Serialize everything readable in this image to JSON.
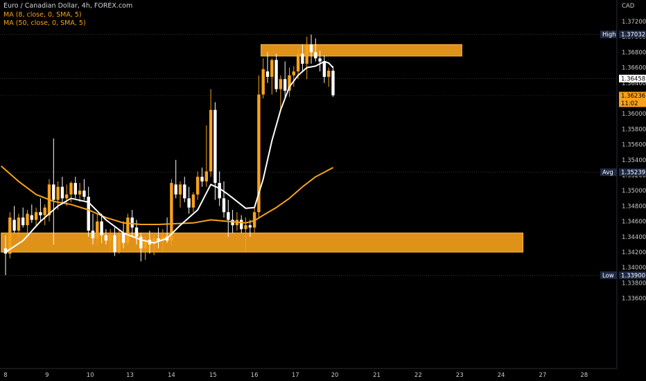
{
  "legend": {
    "title": "Euro / Canadian Dollar, 4h, FOREX.com",
    "ma_fast": "MA (8, close, 0, SMA, 5)",
    "ma_slow": "MA (50, close, 0, SMA, 5)"
  },
  "colors": {
    "background": "#000000",
    "bull": "#f7a21b",
    "bear": "#ffffff",
    "zone": "#f7a21b",
    "ma_fast": "#ffffff",
    "ma_slow": "#f7a21b",
    "axis_text": "#c8c8c8",
    "tag_dark": "#1e2a44"
  },
  "chart_data": {
    "type": "candlestick",
    "currency_label": "CAD",
    "price_ticks": [
      "1.37200",
      "1.37000",
      "1.36800",
      "1.36600",
      "1.36400",
      "1.36200",
      "1.36000",
      "1.35800",
      "1.35600",
      "1.35400",
      "1.35200",
      "1.35000",
      "1.34800",
      "1.34600",
      "1.34400",
      "1.34200",
      "1.34000",
      "1.33800",
      "1.33600"
    ],
    "x_ticks": [
      {
        "label": "8",
        "bar": 0
      },
      {
        "label": "9",
        "bar": 9.5
      },
      {
        "label": "10",
        "bar": 19.4
      },
      {
        "label": "13",
        "bar": 28.5
      },
      {
        "label": "14",
        "bar": 38
      },
      {
        "label": "15",
        "bar": 47.5
      },
      {
        "label": "16",
        "bar": 57
      },
      {
        "label": "17",
        "bar": 66.4
      },
      {
        "label": "20",
        "bar": 75.4
      },
      {
        "label": "21",
        "bar": 85
      },
      {
        "label": "22",
        "bar": 94.5
      },
      {
        "label": "23",
        "bar": 104
      },
      {
        "label": "24",
        "bar": 113.5
      },
      {
        "label": "27",
        "bar": 123
      },
      {
        "label": "28",
        "bar": 132.5
      }
    ],
    "price_tags": [
      {
        "label": "High",
        "value": "1.37032",
        "price": 1.37032,
        "style": "dark"
      },
      {
        "label": "",
        "value": "1.36458",
        "price": 1.36458,
        "style": "light"
      },
      {
        "label": "",
        "value": "1.36236",
        "price": 1.36236,
        "style": "orange",
        "sub": "11:02"
      },
      {
        "label": "Avg",
        "value": "1.35239",
        "price": 1.35239,
        "style": "dark"
      },
      {
        "label": "Low",
        "value": "1.33900",
        "price": 1.339,
        "style": "dark"
      }
    ],
    "zones": [
      {
        "name": "resistance-zone",
        "from_bar": 58.5,
        "to_bar": 104.5,
        "top": 1.369,
        "bottom": 1.3675
      },
      {
        "name": "support-zone",
        "from_bar": -1,
        "to_bar": 118.5,
        "top": 1.3445,
        "bottom": 1.342
      }
    ],
    "candles": [
      [
        1.3425,
        1.3442,
        1.339,
        1.3418
      ],
      [
        1.3418,
        1.3472,
        1.3412,
        1.3465
      ],
      [
        1.3462,
        1.348,
        1.3445,
        1.3448
      ],
      [
        1.3448,
        1.347,
        1.344,
        1.3465
      ],
      [
        1.3465,
        1.3478,
        1.3452,
        1.3455
      ],
      [
        1.3455,
        1.3475,
        1.3445,
        1.347
      ],
      [
        1.3468,
        1.3482,
        1.3458,
        1.3462
      ],
      [
        1.3462,
        1.3478,
        1.3455,
        1.3472
      ],
      [
        1.3472,
        1.349,
        1.346,
        1.3468
      ],
      [
        1.3468,
        1.3482,
        1.3455,
        1.3478
      ],
      [
        1.3468,
        1.3515,
        1.346,
        1.3508
      ],
      [
        1.3508,
        1.3568,
        1.343,
        1.3488
      ],
      [
        1.3488,
        1.3512,
        1.3475,
        1.3505
      ],
      [
        1.3505,
        1.3518,
        1.3482,
        1.349
      ],
      [
        1.349,
        1.3508,
        1.348,
        1.3495
      ],
      [
        1.3495,
        1.3512,
        1.3485,
        1.351
      ],
      [
        1.351,
        1.3518,
        1.349,
        1.3495
      ],
      [
        1.3495,
        1.351,
        1.3485,
        1.35
      ],
      [
        1.35,
        1.3515,
        1.3488,
        1.3492
      ],
      [
        1.3492,
        1.3505,
        1.344,
        1.3448
      ],
      [
        1.3448,
        1.347,
        1.343,
        1.3438
      ],
      [
        1.3438,
        1.347,
        1.3428,
        1.346
      ],
      [
        1.346,
        1.347,
        1.3432,
        1.3442
      ],
      [
        1.3442,
        1.345,
        1.343,
        1.3435
      ],
      [
        1.3435,
        1.345,
        1.342,
        1.3442
      ],
      [
        1.3442,
        1.3452,
        1.3415,
        1.342
      ],
      [
        1.342,
        1.3448,
        1.3418,
        1.3445
      ],
      [
        1.3445,
        1.346,
        1.3425,
        1.3432
      ],
      [
        1.3432,
        1.347,
        1.3428,
        1.3465
      ],
      [
        1.3465,
        1.3475,
        1.344,
        1.3452
      ],
      [
        1.3452,
        1.3462,
        1.343,
        1.344
      ],
      [
        1.344,
        1.3445,
        1.3408,
        1.3425
      ],
      [
        1.3425,
        1.344,
        1.341,
        1.3436
      ],
      [
        1.3436,
        1.3448,
        1.3418,
        1.343
      ],
      [
        1.343,
        1.3442,
        1.3416,
        1.3438
      ],
      [
        1.3438,
        1.3452,
        1.3425,
        1.3434
      ],
      [
        1.3434,
        1.345,
        1.342,
        1.344
      ],
      [
        1.344,
        1.3465,
        1.3432,
        1.3435
      ],
      [
        1.3435,
        1.3515,
        1.3428,
        1.351
      ],
      [
        1.3508,
        1.354,
        1.349,
        1.3495
      ],
      [
        1.3495,
        1.3512,
        1.3478,
        1.3508
      ],
      [
        1.3508,
        1.3518,
        1.3485,
        1.349
      ],
      [
        1.349,
        1.3505,
        1.347,
        1.3478
      ],
      [
        1.3478,
        1.3498,
        1.3472,
        1.3495
      ],
      [
        1.3495,
        1.3525,
        1.3488,
        1.3518
      ],
      [
        1.3518,
        1.353,
        1.3505,
        1.3512
      ],
      [
        1.3512,
        1.3585,
        1.3505,
        1.3525
      ],
      [
        1.3525,
        1.3632,
        1.3518,
        1.3605
      ],
      [
        1.3605,
        1.3615,
        1.3488,
        1.351
      ],
      [
        1.351,
        1.3525,
        1.348,
        1.349
      ],
      [
        1.349,
        1.3512,
        1.3465,
        1.3472
      ],
      [
        1.3472,
        1.3488,
        1.344,
        1.3462
      ],
      [
        1.3462,
        1.3475,
        1.3445,
        1.3455
      ],
      [
        1.3455,
        1.3472,
        1.3448,
        1.3462
      ],
      [
        1.3462,
        1.3468,
        1.3445,
        1.345
      ],
      [
        1.345,
        1.3465,
        1.342,
        1.3455
      ],
      [
        1.3455,
        1.3462,
        1.344,
        1.3452
      ],
      [
        1.3452,
        1.3478,
        1.3445,
        1.3472
      ],
      [
        1.3472,
        1.365,
        1.3465,
        1.3625
      ],
      [
        1.3625,
        1.3672,
        1.362,
        1.3658
      ],
      [
        1.3655,
        1.368,
        1.364,
        1.3648
      ],
      [
        1.3648,
        1.3672,
        1.3625,
        1.367
      ],
      [
        1.367,
        1.3678,
        1.3628,
        1.3632
      ],
      [
        1.3632,
        1.365,
        1.3605,
        1.3645
      ],
      [
        1.3645,
        1.3668,
        1.362,
        1.363
      ],
      [
        1.363,
        1.366,
        1.3622,
        1.365
      ],
      [
        1.365,
        1.3662,
        1.3635,
        1.3655
      ],
      [
        1.3655,
        1.3685,
        1.3645,
        1.3678
      ],
      [
        1.3678,
        1.369,
        1.3655,
        1.3665
      ],
      [
        1.3665,
        1.37,
        1.3645,
        1.369
      ],
      [
        1.369,
        1.3703,
        1.3665,
        1.368
      ],
      [
        1.368,
        1.3698,
        1.3668,
        1.3672
      ],
      [
        1.3672,
        1.3682,
        1.3655,
        1.3668
      ],
      [
        1.3668,
        1.3676,
        1.364,
        1.3648
      ],
      [
        1.3648,
        1.366,
        1.3635,
        1.3656
      ],
      [
        1.3656,
        1.3662,
        1.3622,
        1.3624
      ]
    ],
    "ma_fast": [
      [
        0,
        1.342
      ],
      [
        4,
        1.3435
      ],
      [
        8,
        1.346
      ],
      [
        12,
        1.348
      ],
      [
        15,
        1.349
      ],
      [
        19,
        1.3485
      ],
      [
        23,
        1.3462
      ],
      [
        27,
        1.3445
      ],
      [
        31,
        1.3436
      ],
      [
        34,
        1.3432
      ],
      [
        37,
        1.3438
      ],
      [
        40,
        1.3455
      ],
      [
        44,
        1.3475
      ],
      [
        47,
        1.3508
      ],
      [
        49,
        1.3503
      ],
      [
        51,
        1.3495
      ],
      [
        53,
        1.3486
      ],
      [
        55,
        1.3477
      ],
      [
        57,
        1.3478
      ],
      [
        59,
        1.3515
      ],
      [
        61,
        1.3565
      ],
      [
        63,
        1.3605
      ],
      [
        65,
        1.3635
      ],
      [
        67,
        1.365
      ],
      [
        69,
        1.366
      ],
      [
        71,
        1.3662
      ],
      [
        73,
        1.3668
      ],
      [
        74,
        1.3666
      ],
      [
        75,
        1.366
      ]
    ],
    "ma_slow": [
      [
        -1,
        1.3532
      ],
      [
        3,
        1.3512
      ],
      [
        7,
        1.3495
      ],
      [
        11,
        1.3486
      ],
      [
        15,
        1.3482
      ],
      [
        19,
        1.3475
      ],
      [
        23,
        1.3465
      ],
      [
        27,
        1.3458
      ],
      [
        31,
        1.3456
      ],
      [
        35,
        1.3456
      ],
      [
        39,
        1.3457
      ],
      [
        43,
        1.3458
      ],
      [
        47,
        1.3462
      ],
      [
        51,
        1.346
      ],
      [
        55,
        1.3458
      ],
      [
        57,
        1.3461
      ],
      [
        59,
        1.3468
      ],
      [
        62,
        1.3478
      ],
      [
        65,
        1.349
      ],
      [
        68,
        1.3505
      ],
      [
        71,
        1.3518
      ],
      [
        73,
        1.3524
      ],
      [
        75,
        1.353
      ]
    ]
  }
}
